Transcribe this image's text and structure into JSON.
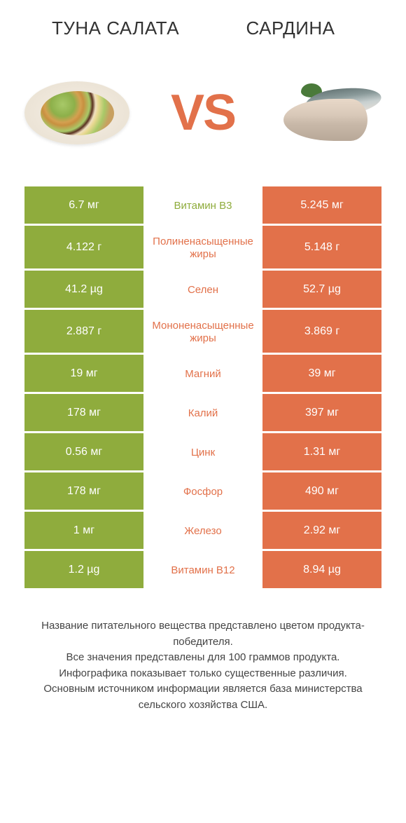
{
  "header": {
    "left_title": "ТУНА САЛАТА",
    "right_title": "САРДИНА"
  },
  "vs_label": "VS",
  "colors": {
    "left_bg": "#8fac3d",
    "right_bg": "#e2714a",
    "vs_color": "#e2714a",
    "background": "#ffffff"
  },
  "comparison": {
    "type": "table",
    "rows": [
      {
        "left": "6.7 мг",
        "label": "Витамин B3",
        "right": "5.245 мг",
        "winner": "left",
        "tall": false
      },
      {
        "left": "4.122 г",
        "label": "Полиненасыщенные жиры",
        "right": "5.148 г",
        "winner": "right",
        "tall": true
      },
      {
        "left": "41.2 µg",
        "label": "Селен",
        "right": "52.7 µg",
        "winner": "right",
        "tall": false
      },
      {
        "left": "2.887 г",
        "label": "Мононенасыщенные жиры",
        "right": "3.869 г",
        "winner": "right",
        "tall": true
      },
      {
        "left": "19 мг",
        "label": "Магний",
        "right": "39 мг",
        "winner": "right",
        "tall": false
      },
      {
        "left": "178 мг",
        "label": "Калий",
        "right": "397 мг",
        "winner": "right",
        "tall": false
      },
      {
        "left": "0.56 мг",
        "label": "Цинк",
        "right": "1.31 мг",
        "winner": "right",
        "tall": false
      },
      {
        "left": "178 мг",
        "label": "Фосфор",
        "right": "490 мг",
        "winner": "right",
        "tall": false
      },
      {
        "left": "1 мг",
        "label": "Железо",
        "right": "2.92 мг",
        "winner": "right",
        "tall": false
      },
      {
        "left": "1.2 µg",
        "label": "Витамин B12",
        "right": "8.94 µg",
        "winner": "right",
        "tall": false
      }
    ]
  },
  "footer": {
    "line1": "Название питательного вещества представлено цветом продукта-победителя.",
    "line2": "Все значения представлены для 100 граммов продукта.",
    "line3": "Инфографика показывает только существенные различия.",
    "line4": "Основным источником информации является база министерства сельского хозяйства США."
  }
}
